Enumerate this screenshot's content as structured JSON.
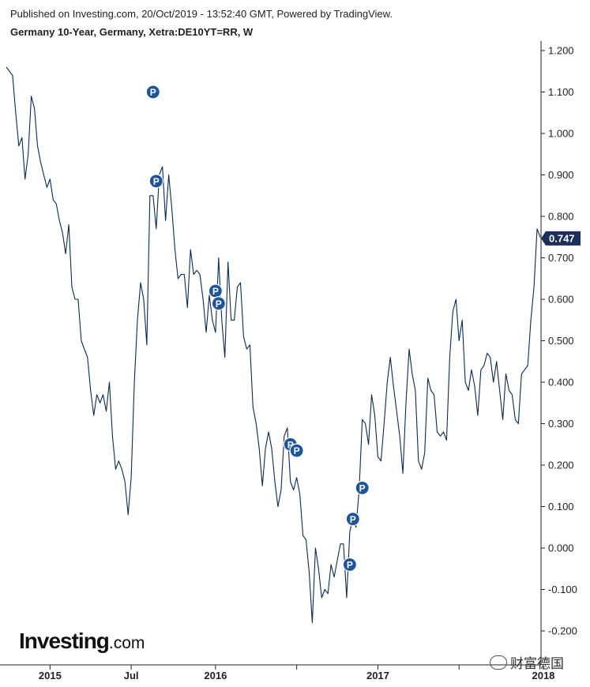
{
  "header": {
    "published": "Published on Investing.com, 20/Oct/2019 - 13:52:40 GMT, Powered by TradingView.",
    "title": "Germany 10-Year, Germany, Xetra:DE10YT=RR, W"
  },
  "branding": {
    "logo": "Investing",
    "logo_suffix": ".com",
    "watermark": "财富德国"
  },
  "colors": {
    "line": "#0c2a4f",
    "marker": "#1d5596",
    "price_badge": "#1b2e5c"
  },
  "chart_data": {
    "type": "line",
    "title": "Germany 10-Year, Germany, Xetra:DE10YT=RR, W",
    "xlabel": "",
    "ylabel": "",
    "ylim": [
      -0.24,
      1.26
    ],
    "grid": false,
    "y_ticks": [
      "1.200",
      "1.100",
      "1.000",
      "0.900",
      "0.800",
      "0.700",
      "0.600",
      "0.500",
      "0.400",
      "0.300",
      "0.200",
      "0.100",
      "0.000",
      "-0.100",
      "-0.200"
    ],
    "x_ticks": [
      {
        "label": "2015",
        "index": 14
      },
      {
        "label": "Jul",
        "index": 40
      },
      {
        "label": "2016",
        "index": 67
      },
      {
        "label": "2017",
        "index": 119
      },
      {
        "label": "2018",
        "index": 172
      }
    ],
    "x_minor_ticks": [
      93,
      145
    ],
    "last_value": "0.747",
    "series": [
      {
        "values": [
          1.16,
          1.15,
          1.14,
          1.05,
          0.97,
          0.99,
          0.89,
          0.95,
          1.09,
          1.06,
          0.97,
          0.93,
          0.9,
          0.87,
          0.89,
          0.84,
          0.83,
          0.79,
          0.76,
          0.71,
          0.78,
          0.63,
          0.6,
          0.6,
          0.5,
          0.48,
          0.46,
          0.38,
          0.32,
          0.37,
          0.35,
          0.37,
          0.33,
          0.4,
          0.27,
          0.19,
          0.21,
          0.19,
          0.16,
          0.08,
          0.17,
          0.4,
          0.55,
          0.64,
          0.6,
          0.49,
          0.85,
          0.85,
          0.77,
          0.9,
          0.92,
          0.79,
          0.9,
          0.82,
          0.72,
          0.65,
          0.66,
          0.66,
          0.58,
          0.72,
          0.66,
          0.67,
          0.66,
          0.6,
          0.52,
          0.61,
          0.55,
          0.52,
          0.7,
          0.55,
          0.46,
          0.69,
          0.55,
          0.55,
          0.63,
          0.64,
          0.51,
          0.48,
          0.49,
          0.34,
          0.3,
          0.24,
          0.15,
          0.24,
          0.28,
          0.24,
          0.16,
          0.1,
          0.14,
          0.27,
          0.29,
          0.16,
          0.14,
          0.17,
          0.13,
          0.03,
          0.02,
          -0.06,
          -0.18,
          0.0,
          -0.05,
          -0.12,
          -0.1,
          -0.11,
          -0.04,
          -0.07,
          -0.03,
          0.01,
          0.01,
          -0.12,
          0.04,
          0.07,
          0.05,
          0.14,
          0.31,
          0.3,
          0.25,
          0.37,
          0.32,
          0.22,
          0.21,
          0.3,
          0.4,
          0.46,
          0.39,
          0.33,
          0.27,
          0.18,
          0.35,
          0.48,
          0.42,
          0.38,
          0.21,
          0.19,
          0.23,
          0.41,
          0.38,
          0.37,
          0.28,
          0.27,
          0.28,
          0.26,
          0.46,
          0.57,
          0.6,
          0.5,
          0.55,
          0.4,
          0.38,
          0.43,
          0.39,
          0.32,
          0.43,
          0.44,
          0.47,
          0.46,
          0.4,
          0.45,
          0.38,
          0.31,
          0.42,
          0.38,
          0.37,
          0.31,
          0.3,
          0.42,
          0.43,
          0.44,
          0.55,
          0.63,
          0.77,
          0.75
        ]
      }
    ],
    "markers": [
      {
        "label": "P",
        "index": 47,
        "value": 1.1
      },
      {
        "label": "P",
        "index": 48,
        "value": 0.885
      },
      {
        "label": "P",
        "index": 67,
        "value": 0.62
      },
      {
        "label": "P",
        "index": 68,
        "value": 0.59
      },
      {
        "label": "P",
        "index": 91,
        "value": 0.25
      },
      {
        "label": "P",
        "index": 93,
        "value": 0.235
      },
      {
        "label": "P",
        "index": 110,
        "value": -0.04
      },
      {
        "label": "P",
        "index": 111,
        "value": 0.07
      },
      {
        "label": "P",
        "index": 114,
        "value": 0.145
      }
    ]
  }
}
